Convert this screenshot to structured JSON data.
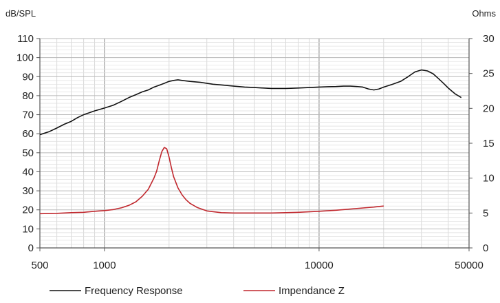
{
  "chart_data": {
    "type": "line",
    "x_scale": "log",
    "xlim": [
      500,
      50000
    ],
    "x_ticks": [
      500,
      1000,
      10000,
      50000
    ],
    "x_tick_labels": [
      "500",
      "1000",
      "10000",
      "50000"
    ],
    "y_left": {
      "label": "dB/SPL",
      "lim": [
        0,
        110
      ],
      "ticks": [
        0,
        10,
        20,
        30,
        40,
        50,
        60,
        70,
        80,
        90,
        100,
        110
      ],
      "tick_labels": [
        "0",
        "10",
        "20",
        "30",
        "40",
        "50",
        "60",
        "70",
        "80",
        "90",
        "100",
        "110"
      ]
    },
    "y_right": {
      "label": "Ohms",
      "lim": [
        0,
        30
      ],
      "ticks": [
        0,
        5,
        10,
        15,
        20,
        25,
        30
      ],
      "tick_labels": [
        "0",
        "5",
        "10",
        "15",
        "20",
        "25",
        "30"
      ]
    },
    "grid": true,
    "legend_position": "bottom",
    "series": [
      {
        "name": "Frequency Response",
        "axis": "left",
        "color": "#111111",
        "x": [
          500,
          550,
          600,
          650,
          700,
          750,
          800,
          900,
          1000,
          1100,
          1200,
          1300,
          1400,
          1500,
          1600,
          1700,
          1800,
          1900,
          2000,
          2100,
          2200,
          2300,
          2500,
          2800,
          3200,
          3600,
          4000,
          4500,
          5000,
          5500,
          6000,
          7000,
          8000,
          9000,
          10000,
          11000,
          12000,
          13000,
          14000,
          15000,
          16000,
          17000,
          18000,
          19000,
          20000,
          22000,
          24000,
          26000,
          28000,
          30000,
          32000,
          34000,
          36000,
          38000,
          40000,
          43000,
          46000
        ],
        "y": [
          59.5,
          61,
          63,
          65,
          66.5,
          68.5,
          70,
          72,
          73.5,
          75,
          77,
          79,
          80.5,
          82,
          83,
          84.5,
          85.5,
          86.5,
          87.5,
          88,
          88.3,
          88,
          87.5,
          87,
          86,
          85.5,
          85,
          84.5,
          84.3,
          84,
          83.8,
          83.8,
          84,
          84.3,
          84.5,
          84.7,
          84.8,
          85,
          85,
          84.8,
          84.5,
          83.5,
          83,
          83.5,
          84.5,
          86,
          87.5,
          90,
          92.5,
          93.5,
          93,
          91.5,
          89,
          86.5,
          84,
          81,
          79
        ]
      },
      {
        "name": "Impendance Z",
        "axis": "right",
        "color": "#c0272d",
        "x": [
          500,
          600,
          700,
          800,
          900,
          1000,
          1100,
          1200,
          1300,
          1400,
          1500,
          1600,
          1700,
          1750,
          1800,
          1850,
          1900,
          1950,
          2000,
          2050,
          2100,
          2200,
          2300,
          2400,
          2500,
          2700,
          3000,
          3500,
          4000,
          5000,
          6000,
          7000,
          8000,
          10000,
          12000,
          15000,
          18000,
          20000
        ],
        "y": [
          4.9,
          4.95,
          5.05,
          5.1,
          5.25,
          5.35,
          5.5,
          5.75,
          6.1,
          6.6,
          7.4,
          8.4,
          10.0,
          11.0,
          12.5,
          13.8,
          14.4,
          14.2,
          13.0,
          11.5,
          10.2,
          8.6,
          7.6,
          6.9,
          6.4,
          5.8,
          5.3,
          5.05,
          5.0,
          5.0,
          5.0,
          5.05,
          5.1,
          5.25,
          5.4,
          5.65,
          5.85,
          6.0
        ]
      }
    ]
  }
}
